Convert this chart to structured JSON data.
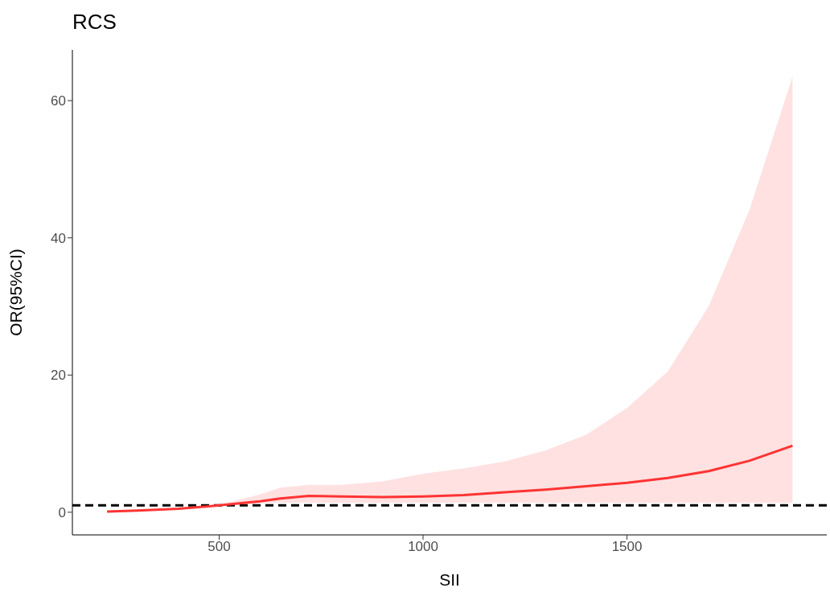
{
  "chart_data": {
    "type": "line",
    "title": "RCS",
    "xlabel": "SII",
    "ylabel": "OR(95%CI)",
    "x": [
      225,
      300,
      400,
      500,
      600,
      650,
      720,
      800,
      900,
      1000,
      1100,
      1200,
      1300,
      1400,
      1500,
      1600,
      1700,
      1800,
      1906
    ],
    "series": [
      {
        "color": "#ff3333",
        "values": [
          0.1,
          0.25,
          0.5,
          1.0,
          1.6,
          2.0,
          2.4,
          2.3,
          2.2,
          2.3,
          2.5,
          2.9,
          3.3,
          3.8,
          4.3,
          5.0,
          6.0,
          7.5,
          9.7
        ],
        "lower": [
          0.05,
          0.15,
          0.4,
          0.9,
          1.3,
          1.4,
          1.4,
          1.4,
          1.4,
          1.4,
          1.4,
          1.4,
          1.4,
          1.4,
          1.4,
          1.4,
          1.4,
          1.4,
          1.4
        ],
        "upper": [
          0.15,
          0.35,
          0.6,
          1.1,
          2.6,
          3.6,
          4.0,
          4.0,
          4.5,
          5.6,
          6.4,
          7.4,
          9.0,
          11.3,
          15.2,
          20.5,
          30.0,
          44.0,
          63.5
        ]
      }
    ],
    "xlim": [
      140,
      1990
    ],
    "xticks": [
      500,
      1000,
      1500
    ],
    "ylim": [
      -3.3,
      67.4
    ],
    "yticks": [
      0,
      20,
      40,
      60
    ],
    "ref_lines": [
      {
        "axis": "y",
        "value": 1,
        "color": "#000000",
        "line_style": "dashed"
      }
    ],
    "grid": false,
    "legend": false,
    "marker": "none",
    "line_style": "solid"
  }
}
